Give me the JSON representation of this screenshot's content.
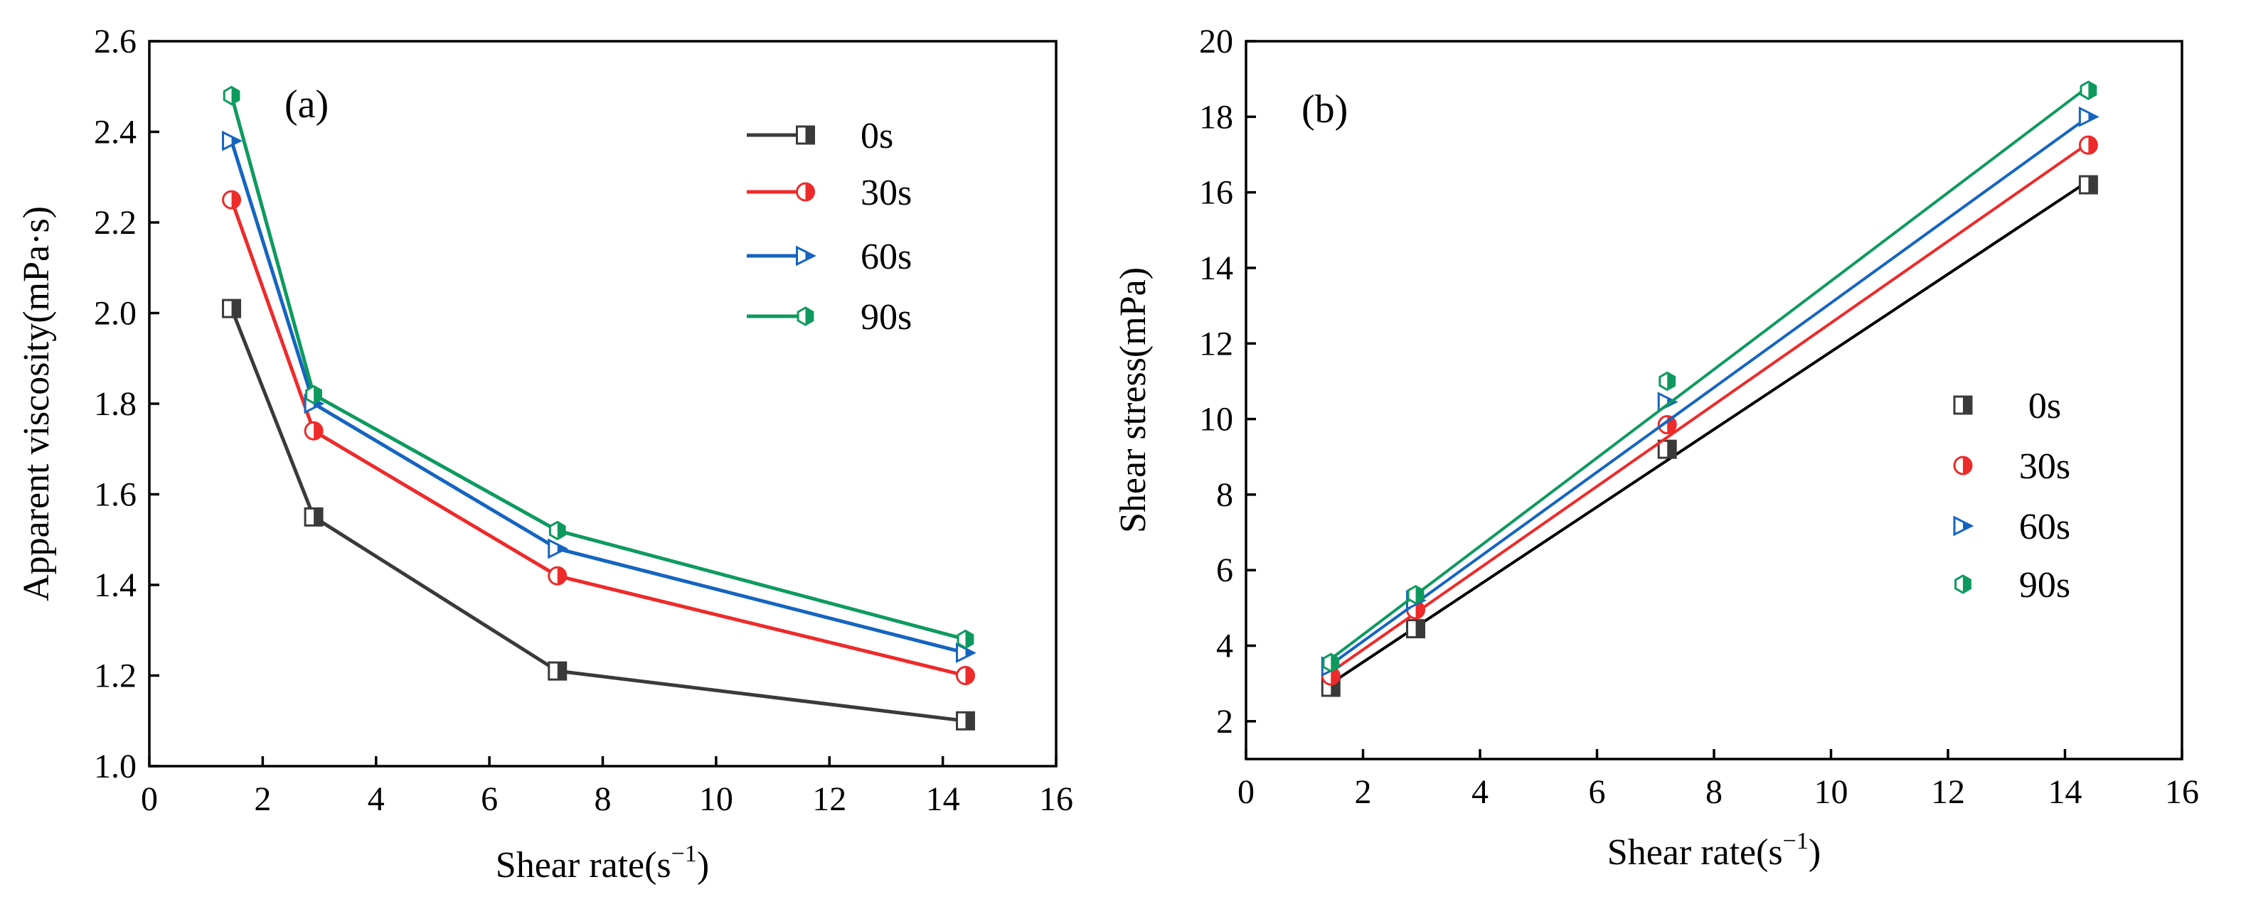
{
  "colors": {
    "0s": "#3a3a3a",
    "30s": "#ee2a2a",
    "60s": "#1565c0",
    "90s": "#0e9a5e",
    "line_0s_b": "#000000"
  },
  "chart_data": [
    {
      "id": "a",
      "type": "line",
      "panel_label": "(a)",
      "title": "",
      "xlabel": "Shear rate(s",
      "xlabel_sup": "−1",
      "xlabel_end": ")",
      "ylabel": "Apparent viscosity(mPa·s)",
      "xlim": [
        0,
        16
      ],
      "ylim": [
        1.0,
        2.6
      ],
      "xticks": [
        "0",
        "2",
        "4",
        "6",
        "8",
        "10",
        "12",
        "14",
        "16"
      ],
      "yticks": [
        "1.0",
        "1.2",
        "1.4",
        "1.6",
        "1.8",
        "2.0",
        "2.2",
        "2.4",
        "2.6"
      ],
      "legend_position": "top-right",
      "x": [
        1.45,
        2.9,
        7.2,
        14.4
      ],
      "series": [
        {
          "name": "0s",
          "marker": "square",
          "values": [
            2.01,
            1.55,
            1.21,
            1.1
          ]
        },
        {
          "name": "30s",
          "marker": "circle",
          "values": [
            2.25,
            1.74,
            1.42,
            1.2
          ]
        },
        {
          "name": "60s",
          "marker": "triangle-right",
          "values": [
            2.38,
            1.8,
            1.48,
            1.25
          ]
        },
        {
          "name": "90s",
          "marker": "hexagon",
          "values": [
            2.48,
            1.82,
            1.52,
            1.28
          ]
        }
      ]
    },
    {
      "id": "b",
      "type": "scatter",
      "panel_label": "(b)",
      "title": "",
      "xlabel": "Shear rate(s",
      "xlabel_sup": "−1",
      "xlabel_end": ")",
      "ylabel": "Shear stress(mPa)",
      "xlim": [
        0,
        16
      ],
      "ylim": [
        1,
        20
      ],
      "xticks": [
        "0",
        "2",
        "4",
        "6",
        "8",
        "10",
        "12",
        "14",
        "16"
      ],
      "yticks": [
        "2",
        "4",
        "6",
        "8",
        "10",
        "12",
        "14",
        "16",
        "18",
        "20"
      ],
      "legend_position": "center-right",
      "fit": "linear",
      "x": [
        1.45,
        2.9,
        7.2,
        14.4
      ],
      "series": [
        {
          "name": "0s",
          "marker": "square",
          "values": [
            2.9,
            4.45,
            9.2,
            16.2
          ],
          "fit_y": [
            3.0,
            16.3
          ]
        },
        {
          "name": "30s",
          "marker": "circle",
          "values": [
            3.2,
            4.95,
            9.85,
            17.25
          ],
          "fit_y": [
            3.3,
            17.3
          ]
        },
        {
          "name": "60s",
          "marker": "triangle-right",
          "values": [
            3.45,
            5.2,
            10.45,
            18.0
          ],
          "fit_y": [
            3.5,
            18.0
          ]
        },
        {
          "name": "90s",
          "marker": "hexagon",
          "values": [
            3.55,
            5.35,
            11.0,
            18.7
          ],
          "fit_y": [
            3.65,
            18.8
          ]
        }
      ]
    }
  ]
}
